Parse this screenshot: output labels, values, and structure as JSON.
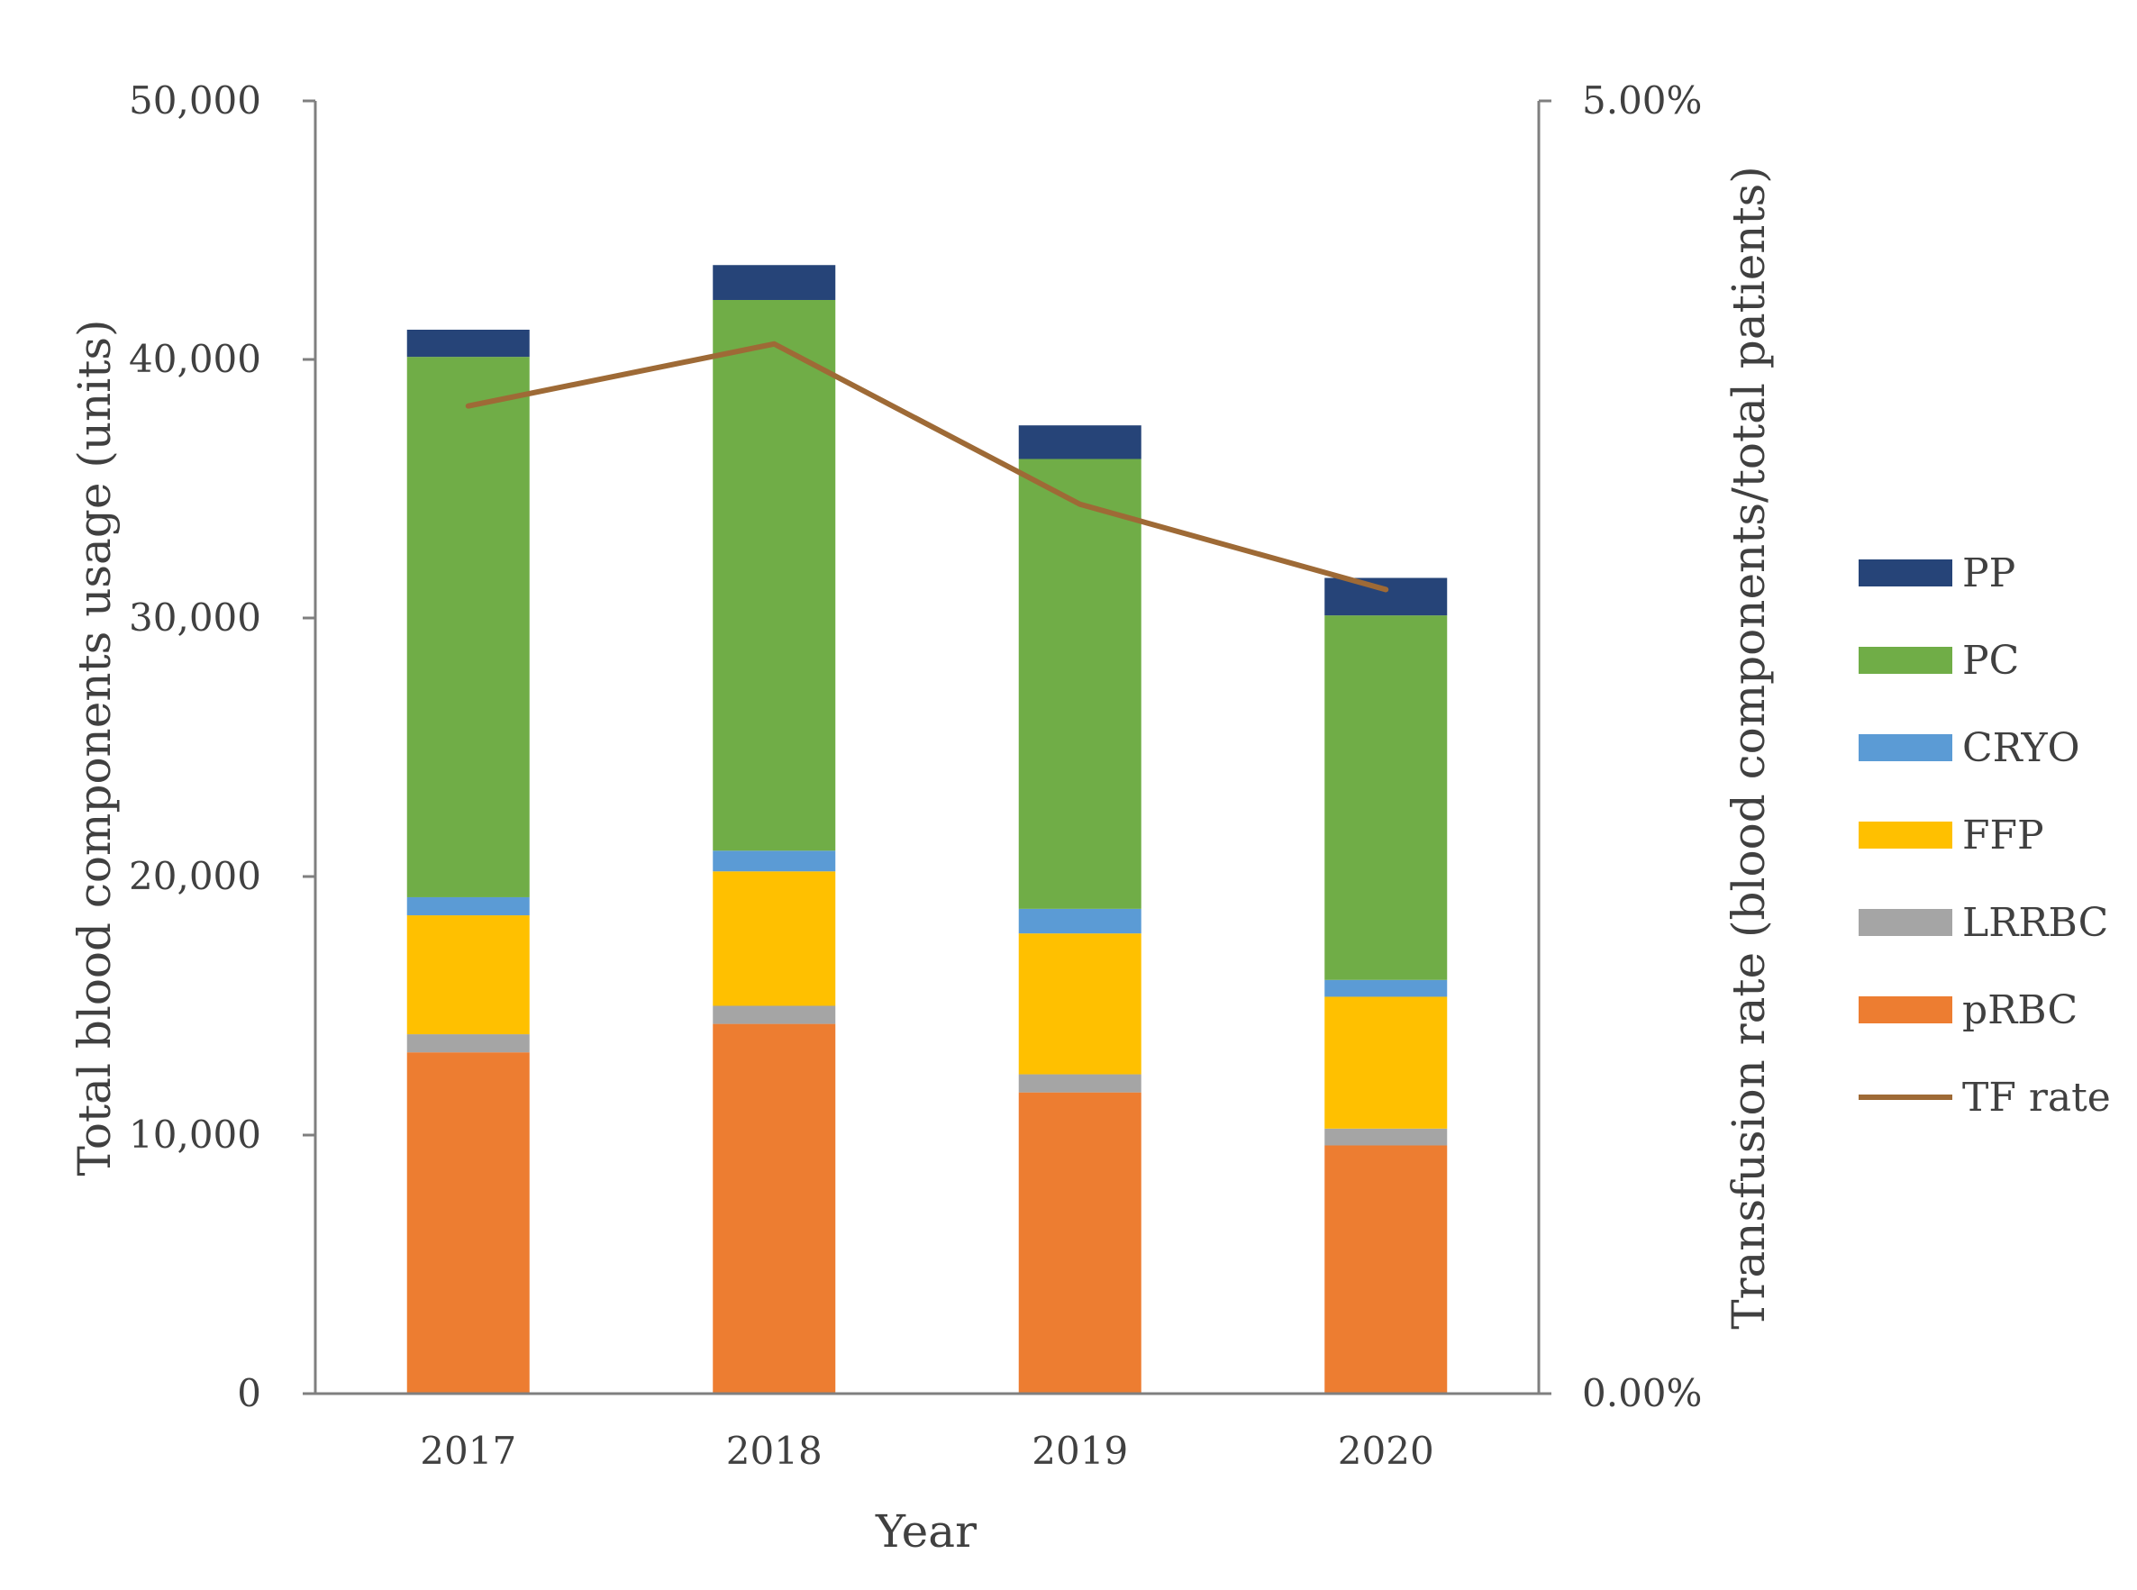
{
  "chart_data": {
    "type": "bar",
    "stacked": true,
    "title": "",
    "categories": [
      "2017",
      "2018",
      "2019",
      "2020"
    ],
    "xlabel": "Year",
    "ylabel": "Total blood components usage (units)",
    "y2label": "Transfusion rate (blood components/total patients)",
    "ylim": [
      0,
      50000
    ],
    "yticks": [
      0,
      10000,
      20000,
      30000,
      40000,
      50000
    ],
    "ytick_labels": [
      "0",
      "10,000",
      "20,000",
      "30,000",
      "40,000",
      "50,000"
    ],
    "y2lim": [
      0,
      5
    ],
    "y2tick_labels": [
      "0.00%",
      "5.00%"
    ],
    "grid": false,
    "legend_position": "right",
    "series": [
      {
        "name": "pRBC",
        "color": "#ED7D31",
        "values": [
          13200,
          14300,
          11650,
          9600
        ]
      },
      {
        "name": "LRRBC",
        "color": "#A5A5A5",
        "values": [
          700,
          700,
          700,
          650
        ]
      },
      {
        "name": "FFP",
        "color": "#FFC000",
        "values": [
          4600,
          5200,
          5450,
          5100
        ]
      },
      {
        "name": "CRYO",
        "color": "#5B9BD5",
        "values": [
          700,
          800,
          950,
          650
        ]
      },
      {
        "name": "PC",
        "color": "#70AD47",
        "values": [
          20900,
          21300,
          17400,
          14100
        ]
      },
      {
        "name": "PP",
        "color": "#264478",
        "values": [
          1050,
          1350,
          1300,
          1450
        ]
      }
    ],
    "line_series": {
      "name": "TF rate",
      "color": "#9E6A36",
      "axis": "secondary",
      "values": [
        3.82,
        4.06,
        3.44,
        3.11
      ]
    },
    "legend_order": [
      "PP",
      "PC",
      "CRYO",
      "FFP",
      "LRRBC",
      "pRBC",
      "TF rate"
    ]
  }
}
